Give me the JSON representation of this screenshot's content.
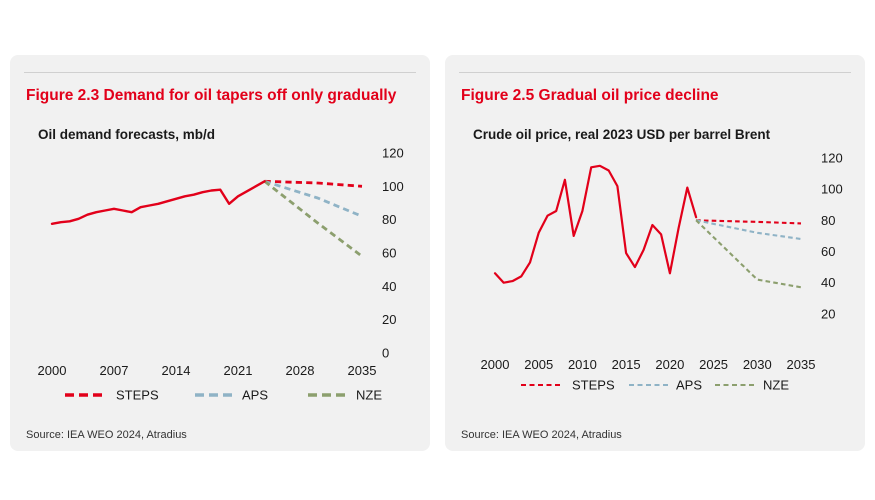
{
  "colors": {
    "steps": "#e2001a",
    "aps": "#8fb3c6",
    "nze": "#8c9f6e",
    "history": "#e2001a",
    "title_red": "#e2001a"
  },
  "left": {
    "figure_title": "Figure 2.3 Demand for oil tapers off only gradually",
    "source": "Source: IEA WEO 2024, Atradius"
  },
  "right": {
    "figure_title": "Figure 2.5 Gradual oil price decline",
    "source": "Source: IEA WEO 2024, Atradius"
  },
  "chart_data": [
    {
      "type": "line",
      "title": "Oil demand forecasts, mb/d",
      "xlabel": "",
      "ylabel": "",
      "xlim": [
        2000,
        2035
      ],
      "ylim": [
        0,
        120
      ],
      "x_ticks": [
        2000,
        2007,
        2014,
        2021,
        2028,
        2035
      ],
      "x_tick_labels": [
        "2000",
        "2007",
        "2014",
        "2021",
        "2028",
        "2035"
      ],
      "y_ticks": [
        0,
        20,
        40,
        60,
        80,
        100,
        120
      ],
      "y_tick_labels": [
        "0",
        "20",
        "40",
        "60",
        "80",
        "100",
        "120"
      ],
      "grid": false,
      "legend_position": "bottom",
      "legend": [
        "STEPS",
        "APS",
        "NZE"
      ],
      "series": [
        {
          "name": "History",
          "key": "history",
          "style": "solid",
          "in_legend": false,
          "x": [
            2000,
            2001,
            2002,
            2003,
            2004,
            2005,
            2006,
            2007,
            2008,
            2009,
            2010,
            2011,
            2012,
            2013,
            2014,
            2015,
            2016,
            2017,
            2018,
            2019,
            2020,
            2021,
            2022,
            2023,
            2024
          ],
          "y": [
            77.5,
            78.5,
            79,
            80.5,
            83,
            84.5,
            85.5,
            86.5,
            85.5,
            84.5,
            87.5,
            88.5,
            89.5,
            91,
            92.5,
            94,
            95,
            96.5,
            97.5,
            98,
            89.5,
            94,
            97,
            100,
            103
          ]
        },
        {
          "name": "STEPS",
          "key": "steps",
          "style": "dashed",
          "in_legend": true,
          "x": [
            2024,
            2030,
            2035
          ],
          "y": [
            103,
            102,
            100
          ]
        },
        {
          "name": "APS",
          "key": "aps",
          "style": "dashed",
          "in_legend": true,
          "x": [
            2024,
            2030,
            2035
          ],
          "y": [
            103,
            93,
            82
          ]
        },
        {
          "name": "NZE",
          "key": "nze",
          "style": "dashed",
          "in_legend": true,
          "x": [
            2024,
            2030,
            2035
          ],
          "y": [
            103,
            78,
            58
          ]
        }
      ]
    },
    {
      "type": "line",
      "title": "Crude oil price, real 2023 USD per barrel Brent",
      "xlabel": "",
      "ylabel": "",
      "xlim": [
        2000,
        2035
      ],
      "ylim": [
        0,
        120
      ],
      "x_ticks": [
        2000,
        2005,
        2010,
        2015,
        2020,
        2025,
        2030,
        2035
      ],
      "x_tick_labels": [
        "2000",
        "2005",
        "2010",
        "2015",
        "2020",
        "2025",
        "2030",
        "2035"
      ],
      "y_ticks": [
        20,
        40,
        60,
        80,
        100,
        120
      ],
      "y_tick_labels": [
        "20",
        "40",
        "60",
        "80",
        "100",
        "120"
      ],
      "grid": false,
      "legend_position": "bottom",
      "legend": [
        "STEPS",
        "APS",
        "NZE"
      ],
      "series": [
        {
          "name": "History",
          "key": "history",
          "style": "solid",
          "in_legend": false,
          "x": [
            2000,
            2001,
            2002,
            2003,
            2004,
            2005,
            2006,
            2007,
            2008,
            2009,
            2010,
            2011,
            2012,
            2013,
            2014,
            2015,
            2016,
            2017,
            2018,
            2019,
            2020,
            2021,
            2022,
            2023
          ],
          "y": [
            46,
            40,
            41,
            44,
            53,
            72,
            83,
            86,
            106,
            70,
            86,
            114,
            115,
            112,
            102,
            59,
            50,
            61,
            77,
            71,
            46,
            75,
            101,
            82
          ]
        },
        {
          "name": "STEPS",
          "key": "steps",
          "style": "dashed",
          "in_legend": true,
          "x": [
            2023,
            2030,
            2035
          ],
          "y": [
            80,
            79,
            78
          ]
        },
        {
          "name": "APS",
          "key": "aps",
          "style": "dashed",
          "in_legend": true,
          "x": [
            2023,
            2030,
            2035
          ],
          "y": [
            80,
            72,
            68
          ]
        },
        {
          "name": "NZE",
          "key": "nze",
          "style": "dashed",
          "in_legend": true,
          "x": [
            2023,
            2030,
            2035
          ],
          "y": [
            80,
            42,
            37
          ]
        }
      ]
    }
  ]
}
